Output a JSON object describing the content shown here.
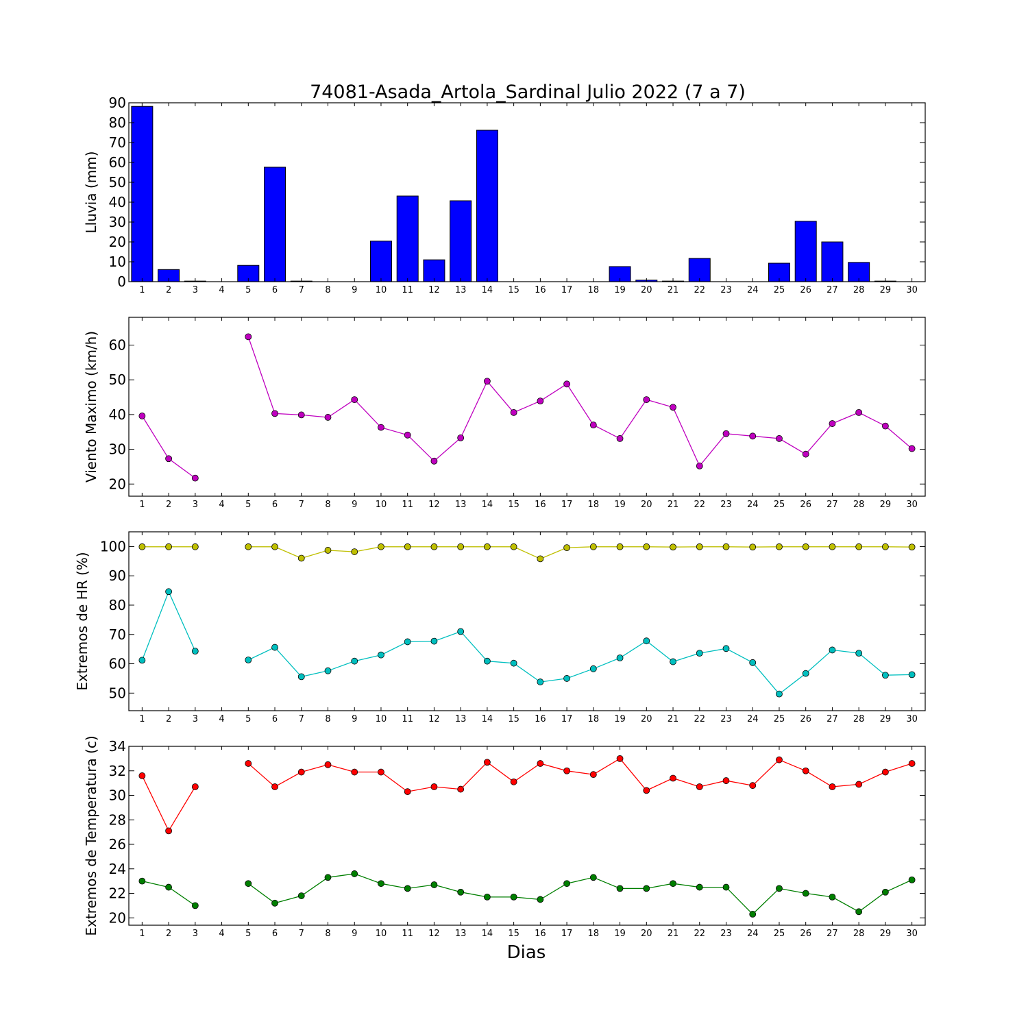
{
  "title": "74081-Asada_Artola_Sardinal Julio 2022  (7 a 7)",
  "xlabel": "Dias",
  "chart_data": [
    {
      "type": "bar",
      "ylabel": "Lluvia (mm)",
      "ylim": [
        0,
        90
      ],
      "yticks": [
        0,
        10,
        20,
        30,
        40,
        50,
        60,
        70,
        80,
        90
      ],
      "xlim": [
        0.5,
        30.5
      ],
      "x": [
        1,
        2,
        3,
        4,
        5,
        6,
        7,
        8,
        9,
        10,
        11,
        12,
        13,
        14,
        15,
        16,
        17,
        18,
        19,
        20,
        21,
        22,
        23,
        24,
        25,
        26,
        27,
        28,
        29,
        30
      ],
      "series": [
        {
          "color": "#0000ff",
          "values": [
            88.2,
            6.1,
            0.3,
            null,
            8.2,
            57.6,
            0.3,
            0,
            0,
            20.4,
            43.1,
            11.0,
            40.7,
            76.2,
            0,
            0,
            0,
            0,
            7.6,
            0.8,
            0.3,
            11.7,
            0,
            0,
            9.3,
            30.4,
            20.0,
            9.7,
            0.3,
            0
          ]
        }
      ]
    },
    {
      "type": "line",
      "ylabel": "Viento Maximo (km/h)",
      "ylim": [
        16.5,
        68
      ],
      "yticks": [
        20,
        30,
        40,
        50,
        60
      ],
      "xlim": [
        0.5,
        30.5
      ],
      "x": [
        1,
        2,
        3,
        4,
        5,
        6,
        7,
        8,
        9,
        10,
        11,
        12,
        13,
        14,
        15,
        16,
        17,
        18,
        19,
        20,
        21,
        22,
        23,
        24,
        25,
        26,
        27,
        28,
        29,
        30
      ],
      "series": [
        {
          "color": "#bf00bf",
          "values": [
            39.6,
            27.3,
            21.7,
            null,
            62.4,
            40.3,
            39.9,
            39.2,
            44.3,
            36.3,
            34.1,
            26.6,
            33.3,
            49.6,
            40.6,
            43.9,
            48.8,
            37.0,
            33.1,
            44.3,
            42.1,
            25.2,
            34.5,
            33.8,
            33.1,
            28.6,
            37.4,
            40.6,
            36.7,
            30.2
          ]
        }
      ]
    },
    {
      "type": "line",
      "ylabel": "Extremos de HR (%)",
      "ylim": [
        44,
        105
      ],
      "yticks": [
        50,
        60,
        70,
        80,
        90,
        100
      ],
      "xlim": [
        0.5,
        30.5
      ],
      "x": [
        1,
        2,
        3,
        4,
        5,
        6,
        7,
        8,
        9,
        10,
        11,
        12,
        13,
        14,
        15,
        16,
        17,
        18,
        19,
        20,
        21,
        22,
        23,
        24,
        25,
        26,
        27,
        28,
        29,
        30
      ],
      "series": [
        {
          "color": "#bfbf00",
          "values": [
            99.9,
            99.9,
            99.9,
            null,
            99.9,
            99.9,
            96.0,
            98.7,
            98.2,
            99.9,
            99.9,
            99.9,
            99.9,
            99.9,
            99.9,
            95.8,
            99.6,
            99.9,
            99.9,
            99.9,
            99.8,
            99.9,
            99.9,
            99.8,
            99.9,
            99.9,
            99.9,
            99.9,
            99.9,
            99.8
          ]
        },
        {
          "color": "#00bfbf",
          "values": [
            61.2,
            84.6,
            64.3,
            null,
            61.3,
            65.6,
            55.6,
            57.6,
            60.9,
            63.0,
            67.5,
            67.7,
            71.0,
            60.9,
            60.2,
            53.8,
            55.0,
            58.3,
            62.0,
            67.8,
            60.7,
            63.6,
            65.2,
            60.4,
            49.7,
            56.7,
            64.7,
            63.6,
            56.1,
            56.3
          ]
        }
      ]
    },
    {
      "type": "line",
      "ylabel": "Extremos de Temperatura (c)",
      "ylim": [
        19.4,
        34
      ],
      "yticks": [
        20,
        22,
        24,
        26,
        28,
        30,
        32,
        34
      ],
      "xlim": [
        0.5,
        30.5
      ],
      "x": [
        1,
        2,
        3,
        4,
        5,
        6,
        7,
        8,
        9,
        10,
        11,
        12,
        13,
        14,
        15,
        16,
        17,
        18,
        19,
        20,
        21,
        22,
        23,
        24,
        25,
        26,
        27,
        28,
        29,
        30
      ],
      "series": [
        {
          "color": "#ff0000",
          "values": [
            31.6,
            27.1,
            30.7,
            null,
            32.6,
            30.7,
            31.9,
            32.5,
            31.9,
            31.9,
            30.3,
            30.7,
            30.5,
            32.7,
            31.1,
            32.6,
            32.0,
            31.7,
            33.0,
            30.4,
            31.4,
            30.7,
            31.2,
            30.8,
            32.9,
            32.0,
            30.7,
            30.9,
            31.9,
            32.6
          ]
        },
        {
          "color": "#007f00",
          "values": [
            23.0,
            22.5,
            21.0,
            null,
            22.8,
            21.2,
            21.8,
            23.3,
            23.6,
            22.8,
            22.4,
            22.7,
            22.1,
            21.7,
            21.7,
            21.5,
            22.8,
            23.3,
            22.4,
            22.4,
            22.8,
            22.5,
            22.5,
            20.3,
            22.4,
            22.0,
            21.7,
            20.5,
            22.1,
            23.1
          ]
        }
      ]
    }
  ]
}
